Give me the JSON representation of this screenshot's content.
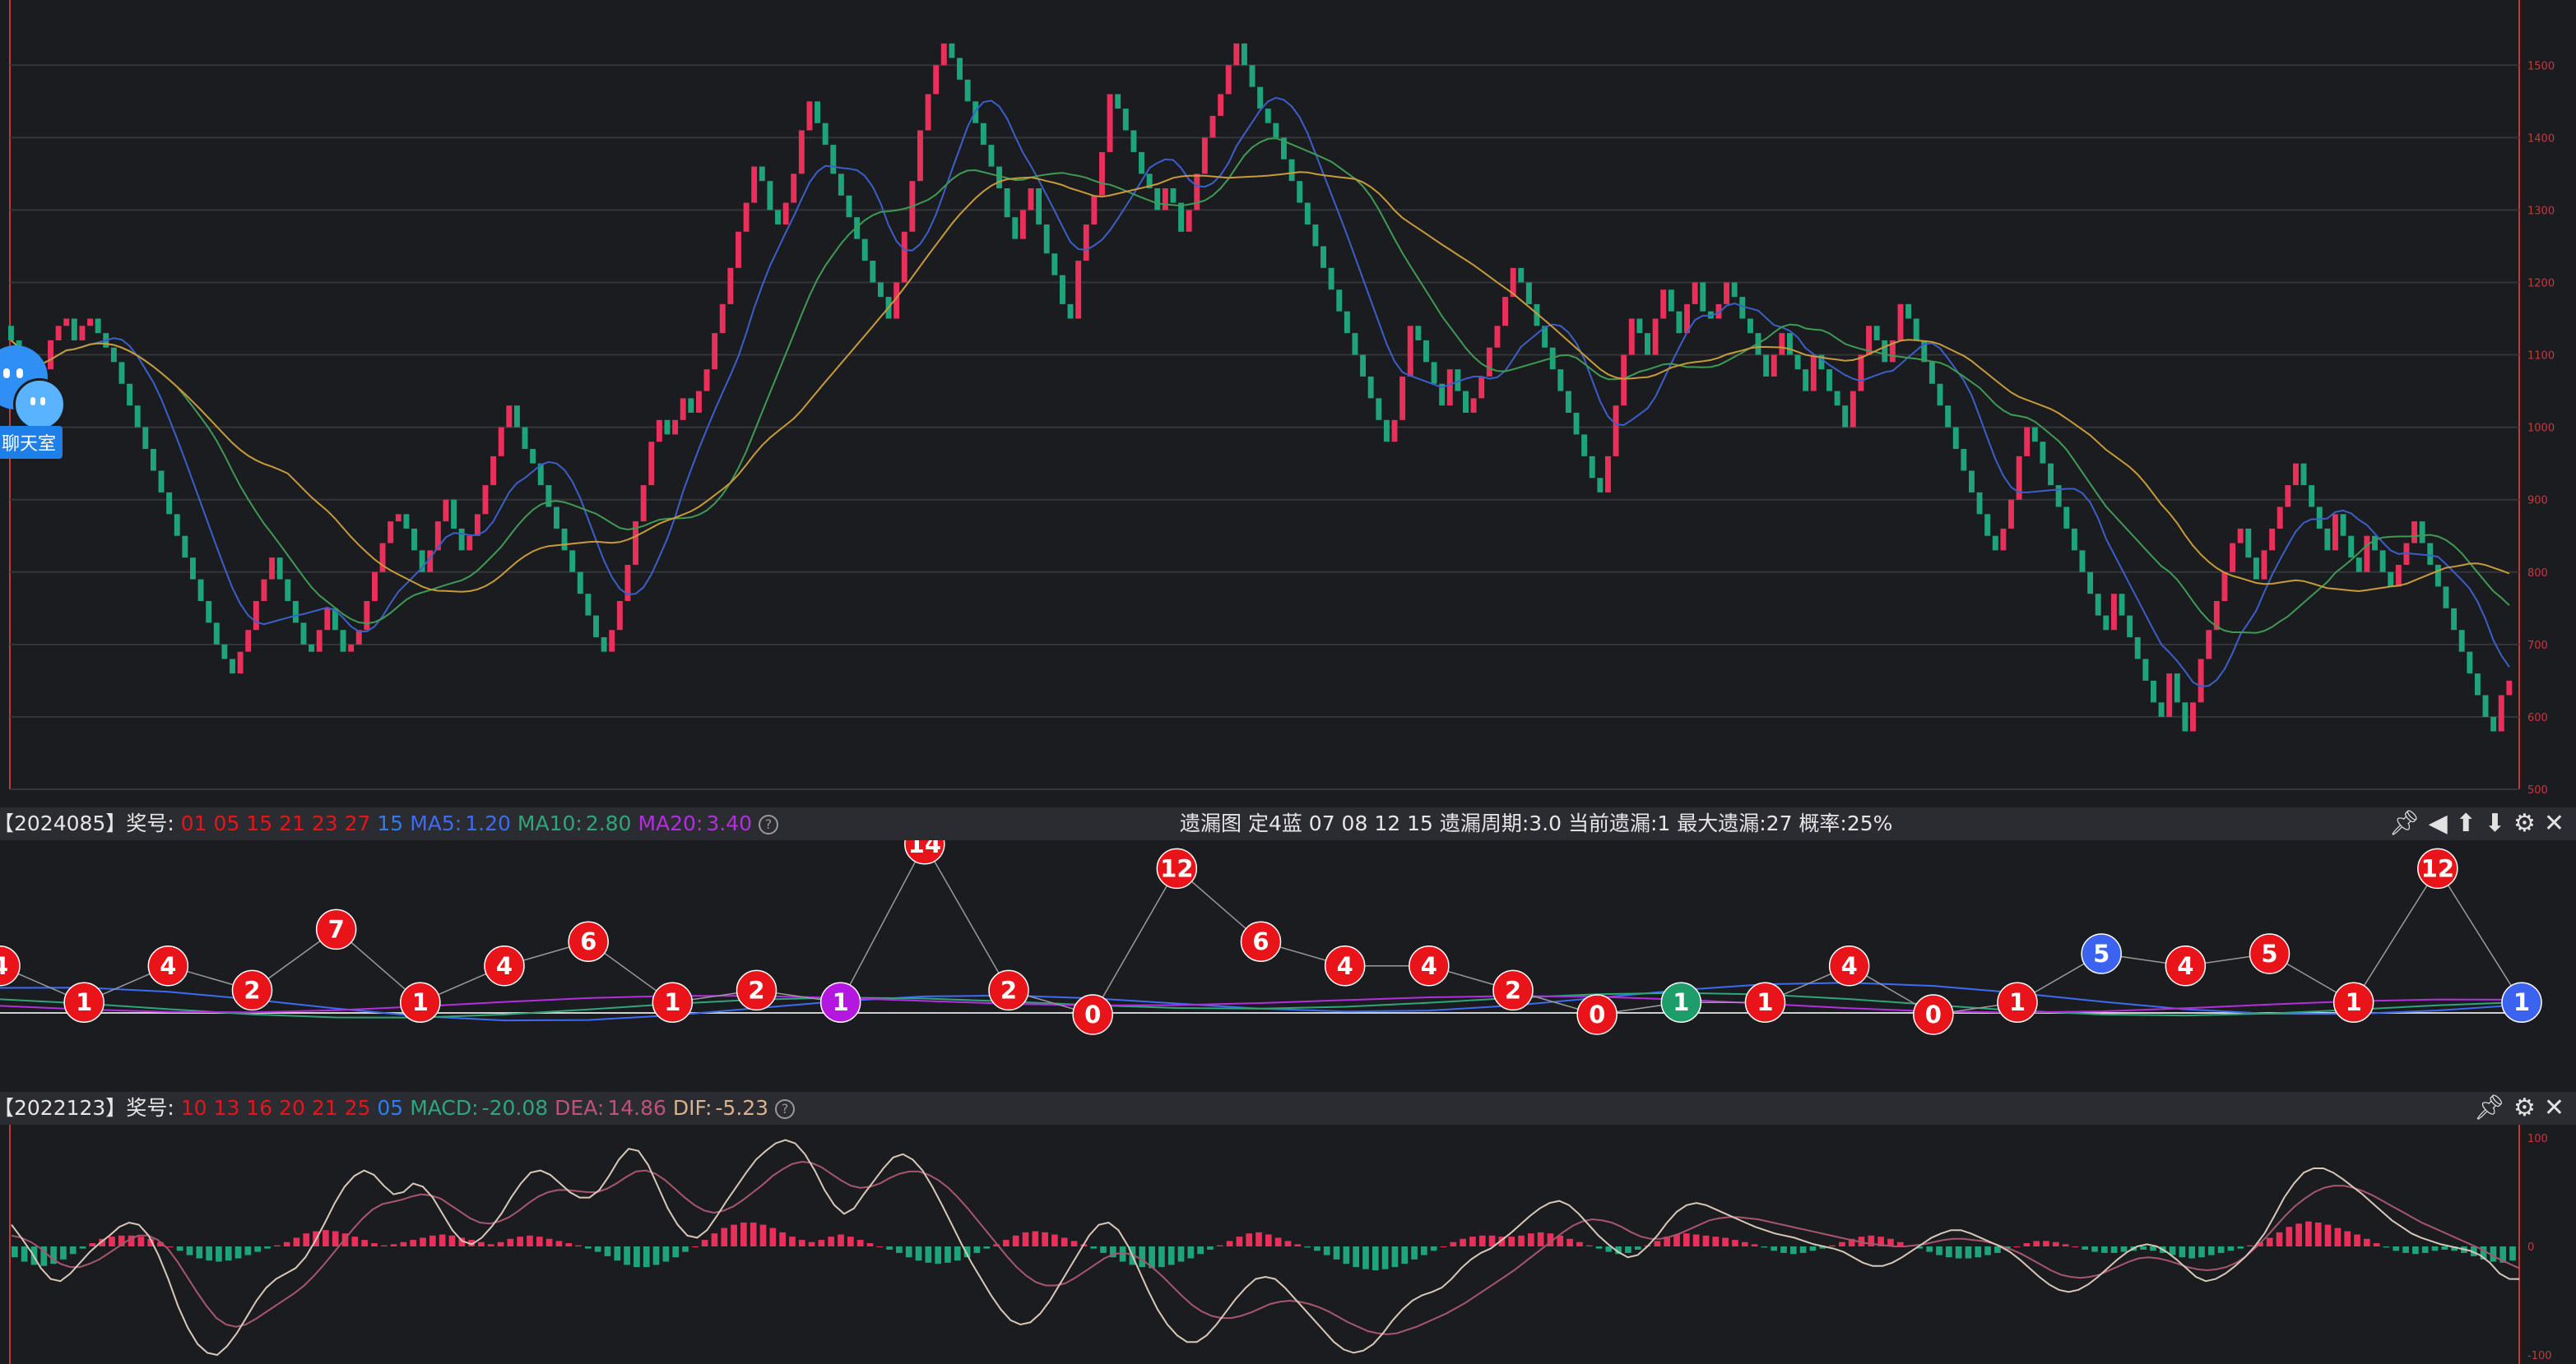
{
  "main_chart": {
    "axis_labels": [
      "1500",
      "1400",
      "1300",
      "1200",
      "1100",
      "1000",
      "900",
      "800",
      "700",
      "600",
      "500"
    ],
    "box_closes": [
      1120,
      1100,
      1080,
      1060,
      1080,
      1120,
      1140,
      1150,
      1120,
      1140,
      1150,
      1130,
      1110,
      1090,
      1060,
      1030,
      1000,
      970,
      940,
      910,
      880,
      850,
      820,
      790,
      760,
      730,
      700,
      680,
      660,
      690,
      720,
      760,
      790,
      820,
      790,
      760,
      730,
      700,
      690,
      720,
      750,
      720,
      690,
      700,
      720,
      760,
      800,
      840,
      870,
      880,
      860,
      830,
      800,
      830,
      870,
      900,
      860,
      830,
      850,
      880,
      920,
      960,
      1000,
      1030,
      1000,
      970,
      950,
      920,
      890,
      860,
      830,
      800,
      770,
      740,
      710,
      690,
      720,
      760,
      810,
      870,
      920,
      980,
      1010,
      990,
      1010,
      1040,
      1020,
      1050,
      1080,
      1130,
      1170,
      1220,
      1270,
      1310,
      1360,
      1340,
      1300,
      1280,
      1310,
      1350,
      1410,
      1450,
      1420,
      1390,
      1350,
      1320,
      1290,
      1260,
      1230,
      1200,
      1180,
      1150,
      1200,
      1270,
      1340,
      1410,
      1460,
      1500,
      1530,
      1510,
      1480,
      1450,
      1420,
      1390,
      1360,
      1330,
      1290,
      1260,
      1300,
      1330,
      1280,
      1240,
      1210,
      1170,
      1150,
      1230,
      1280,
      1320,
      1380,
      1460,
      1440,
      1410,
      1380,
      1350,
      1330,
      1300,
      1330,
      1310,
      1270,
      1300,
      1350,
      1400,
      1430,
      1460,
      1500,
      1530,
      1500,
      1470,
      1440,
      1420,
      1400,
      1370,
      1340,
      1310,
      1280,
      1250,
      1220,
      1190,
      1160,
      1130,
      1100,
      1070,
      1040,
      1010,
      980,
      1010,
      1070,
      1140,
      1120,
      1090,
      1060,
      1030,
      1080,
      1050,
      1020,
      1040,
      1070,
      1110,
      1140,
      1180,
      1220,
      1200,
      1170,
      1140,
      1110,
      1080,
      1050,
      1020,
      990,
      960,
      930,
      910,
      960,
      1030,
      1100,
      1150,
      1130,
      1100,
      1150,
      1190,
      1160,
      1130,
      1170,
      1200,
      1160,
      1150,
      1170,
      1200,
      1180,
      1150,
      1130,
      1100,
      1070,
      1100,
      1130,
      1100,
      1080,
      1050,
      1100,
      1080,
      1050,
      1030,
      1000,
      1050,
      1100,
      1140,
      1120,
      1090,
      1120,
      1170,
      1150,
      1120,
      1090,
      1060,
      1030,
      1000,
      970,
      940,
      910,
      880,
      850,
      830,
      860,
      900,
      960,
      1000,
      980,
      950,
      920,
      890,
      860,
      830,
      800,
      770,
      740,
      720,
      770,
      740,
      710,
      680,
      650,
      620,
      600,
      660,
      620,
      580,
      620,
      680,
      720,
      760,
      800,
      840,
      860,
      820,
      790,
      830,
      860,
      890,
      920,
      950,
      920,
      890,
      860,
      830,
      880,
      850,
      820,
      800,
      850,
      830,
      800,
      780,
      810,
      840,
      870,
      840,
      810,
      780,
      750,
      720,
      690,
      660,
      630,
      600,
      580,
      630,
      650
    ]
  },
  "bar1": {
    "period": "【2024085】",
    "prize_label": "奖号:",
    "red_numbers": "01 05 15 21 23 27",
    "blue_number": "15",
    "ma5_label": "MA5:",
    "ma5_value": "1.20",
    "ma10_label": "MA10:",
    "ma10_value": "2.80",
    "ma20_label": "MA20:",
    "ma20_value": "3.40",
    "help": "?",
    "center_text": "遗漏图  定4蓝  07 08 12 15    遗漏周期:3.0   当前遗漏:1   最大遗漏:27   概率:25%",
    "tools": [
      "pin-icon",
      "back-icon",
      "up-icon",
      "down-icon",
      "settings-icon",
      "close-icon"
    ]
  },
  "omission_chart": {
    "values": [
      4,
      1,
      4,
      2,
      7,
      1,
      4,
      6,
      1,
      2,
      1,
      14,
      2,
      0,
      12,
      6,
      4,
      4,
      2,
      0,
      1,
      1,
      4,
      0,
      1,
      5,
      4,
      5,
      1,
      12,
      1
    ],
    "colors": [
      "red",
      "red",
      "red",
      "red",
      "red",
      "red",
      "red",
      "red",
      "red",
      "red",
      "purple",
      "red",
      "red",
      "red",
      "red",
      "red",
      "red",
      "red",
      "red",
      "red",
      "green",
      "red",
      "red",
      "red",
      "red",
      "blue",
      "red",
      "red",
      "red",
      "red",
      "blue"
    ],
    "palette": {
      "red": "#e8141a",
      "purple": "#b418e0",
      "green": "#1e9c6a",
      "blue": "#3b63f0"
    }
  },
  "bar2": {
    "period": "【2022123】",
    "prize_label": "奖号:",
    "red_numbers": "10 13 16 20 21 25",
    "blue_number": "05",
    "macd_label": "MACD:",
    "macd_value": "-20.08",
    "dea_label": "DEA:",
    "dea_value": "14.86",
    "dif_label": "DIF:",
    "dif_value": "-5.23",
    "help": "?",
    "tools": [
      "pin-icon",
      "settings-icon",
      "close-icon"
    ]
  },
  "macd_chart": {
    "axis_labels": [
      "100",
      "0",
      "-100"
    ],
    "histogram": [
      -10,
      -14,
      -17,
      -18,
      -16,
      -12,
      -7,
      -2,
      3,
      7,
      9,
      10,
      10,
      9,
      7,
      4,
      0,
      -4,
      -8,
      -11,
      -13,
      -14,
      -13,
      -11,
      -8,
      -5,
      -2,
      1,
      4,
      8,
      12,
      14,
      15,
      14,
      12,
      9,
      6,
      3,
      1,
      2,
      4,
      6,
      8,
      10,
      11,
      10,
      8,
      6,
      4,
      2,
      4,
      7,
      9,
      10,
      9,
      7,
      5,
      3,
      1,
      -2,
      -5,
      -9,
      -13,
      -17,
      -19,
      -19,
      -17,
      -14,
      -10,
      -5,
      0,
      6,
      12,
      17,
      20,
      22,
      22,
      20,
      17,
      13,
      9,
      6,
      4,
      6,
      9,
      11,
      9,
      6,
      3,
      0,
      -3,
      -6,
      -10,
      -13,
      -15,
      -16,
      -15,
      -13,
      -10,
      -6,
      -2,
      2,
      6,
      10,
      13,
      14,
      13,
      11,
      8,
      5,
      2,
      -2,
      -6,
      -10,
      -14,
      -17,
      -19,
      -20,
      -19,
      -17,
      -14,
      -11,
      -7,
      -3,
      1,
      5,
      9,
      12,
      13,
      11,
      8,
      5,
      2,
      -1,
      -4,
      -8,
      -12,
      -16,
      -19,
      -21,
      -22,
      -21,
      -19,
      -16,
      -12,
      -8,
      -4,
      0,
      4,
      7,
      9,
      10,
      10,
      9,
      9,
      10,
      12,
      13,
      12,
      10,
      7,
      4,
      1,
      -2,
      -5,
      -7,
      -6,
      -3,
      1,
      5,
      9,
      11,
      12,
      11,
      10,
      9,
      8,
      6,
      4,
      2,
      -1,
      -4,
      -6,
      -7,
      -6,
      -4,
      -2,
      1,
      4,
      7,
      9,
      10,
      9,
      7,
      4,
      1,
      -2,
      -5,
      -8,
      -10,
      -11,
      -11,
      -10,
      -8,
      -6,
      -3,
      0,
      3,
      5,
      5,
      4,
      2,
      0,
      -3,
      -5,
      -6,
      -6,
      -5,
      -4,
      -3,
      -4,
      -6,
      -8,
      -10,
      -11,
      -10,
      -8,
      -6,
      -4,
      -2,
      1,
      4,
      8,
      13,
      18,
      21,
      23,
      22,
      20,
      17,
      14,
      11,
      7,
      3,
      -1,
      -4,
      -6,
      -7,
      -6,
      -4,
      -3,
      -4,
      -6,
      -9,
      -12,
      -14,
      -15,
      -13
    ],
    "dif": [
      20,
      8,
      -5,
      -20,
      -30,
      -32,
      -25,
      -15,
      -5,
      3,
      10,
      18,
      22,
      20,
      10,
      -8,
      -30,
      -55,
      -75,
      -90,
      -98,
      -100,
      -92,
      -80,
      -65,
      -50,
      -38,
      -30,
      -25,
      -20,
      -10,
      5,
      22,
      40,
      55,
      65,
      70,
      66,
      56,
      48,
      50,
      58,
      55,
      45,
      30,
      15,
      5,
      2,
      8,
      18,
      30,
      45,
      58,
      68,
      70,
      66,
      58,
      50,
      45,
      45,
      52,
      65,
      80,
      90,
      88,
      75,
      55,
      35,
      20,
      10,
      8,
      15,
      28,
      42,
      55,
      68,
      80,
      88,
      95,
      98,
      95,
      85,
      70,
      52,
      38,
      30,
      35,
      48,
      60,
      72,
      82,
      85,
      80,
      70,
      55,
      38,
      20,
      2,
      -15,
      -30,
      -45,
      -58,
      -68,
      -72,
      -70,
      -62,
      -50,
      -35,
      -20,
      -5,
      10,
      20,
      22,
      15,
      0,
      -20,
      -40,
      -58,
      -72,
      -82,
      -88,
      -88,
      -82,
      -72,
      -60,
      -48,
      -38,
      -30,
      -28,
      -30,
      -38,
      -48,
      -58,
      -68,
      -78,
      -88,
      -95,
      -98,
      -96,
      -90,
      -80,
      -68,
      -58,
      -50,
      -45,
      -42,
      -38,
      -30,
      -20,
      -12,
      -6,
      -2,
      5,
      12,
      20,
      28,
      35,
      40,
      42,
      38,
      30,
      20,
      10,
      2,
      -5,
      -10,
      -8,
      0,
      10,
      22,
      32,
      38,
      40,
      38,
      34,
      30,
      26,
      22,
      18,
      15,
      12,
      10,
      8,
      5,
      2,
      0,
      -2,
      -5,
      -10,
      -15,
      -18,
      -18,
      -15,
      -10,
      -4,
      2,
      8,
      12,
      15,
      15,
      12,
      8,
      4,
      0,
      -5,
      -12,
      -20,
      -28,
      -35,
      -40,
      -42,
      -40,
      -35,
      -28,
      -20,
      -12,
      -5,
      0,
      2,
      0,
      -5,
      -12,
      -20,
      -28,
      -32,
      -30,
      -25,
      -18,
      -10,
      0,
      12,
      28,
      45,
      58,
      68,
      72,
      72,
      68,
      62,
      55,
      48,
      40,
      32,
      24,
      18,
      12,
      8,
      5,
      2,
      0,
      -2,
      -4,
      -8,
      -15,
      -25,
      -30,
      -30
    ],
    "dea": [
      10,
      8,
      4,
      -2,
      -10,
      -16,
      -19,
      -19,
      -16,
      -12,
      -6,
      0,
      6,
      10,
      10,
      6,
      -2,
      -14,
      -28,
      -42,
      -55,
      -66,
      -72,
      -74,
      -72,
      -67,
      -61,
      -55,
      -49,
      -43,
      -36,
      -27,
      -17,
      -6,
      5,
      16,
      26,
      34,
      39,
      41,
      43,
      46,
      48,
      47,
      44,
      38,
      32,
      26,
      22,
      21,
      23,
      27,
      33,
      40,
      46,
      50,
      52,
      52,
      51,
      50,
      50,
      53,
      58,
      64,
      69,
      70,
      67,
      61,
      53,
      45,
      38,
      33,
      31,
      33,
      37,
      43,
      50,
      57,
      65,
      71,
      76,
      78,
      77,
      73,
      67,
      61,
      56,
      54,
      55,
      58,
      63,
      67,
      69,
      69,
      66,
      61,
      54,
      45,
      35,
      24,
      13,
      2,
      -9,
      -19,
      -27,
      -33,
      -36,
      -36,
      -34,
      -29,
      -23,
      -17,
      -11,
      -7,
      -6,
      -8,
      -13,
      -20,
      -28,
      -37,
      -46,
      -54,
      -60,
      -64,
      -66,
      -66,
      -64,
      -61,
      -57,
      -53,
      -51,
      -50,
      -51,
      -53,
      -56,
      -60,
      -65,
      -70,
      -74,
      -78,
      -80,
      -81,
      -80,
      -77,
      -74,
      -70,
      -66,
      -62,
      -57,
      -52,
      -46,
      -40,
      -34,
      -28,
      -22,
      -15,
      -8,
      -1,
      6,
      13,
      19,
      23,
      25,
      24,
      22,
      18,
      13,
      9,
      7,
      7,
      9,
      12,
      16,
      20,
      24,
      26,
      27,
      27,
      26,
      25,
      23,
      21,
      19,
      17,
      15,
      13,
      11,
      9,
      7,
      5,
      3,
      2,
      1,
      0,
      0,
      1,
      2,
      4,
      6,
      7,
      7,
      6,
      5,
      3,
      0,
      -3,
      -7,
      -12,
      -17,
      -22,
      -26,
      -28,
      -29,
      -28,
      -26,
      -22,
      -18,
      -14,
      -11,
      -10,
      -11,
      -13,
      -16,
      -19,
      -21,
      -22,
      -21,
      -19,
      -15,
      -9,
      -1,
      8,
      18,
      28,
      37,
      44,
      50,
      54,
      56,
      56,
      54,
      51,
      47,
      42,
      37,
      32,
      27,
      22,
      18,
      14,
      10,
      6,
      2,
      -2,
      -7,
      -12,
      -16,
      -20
    ]
  }
}
